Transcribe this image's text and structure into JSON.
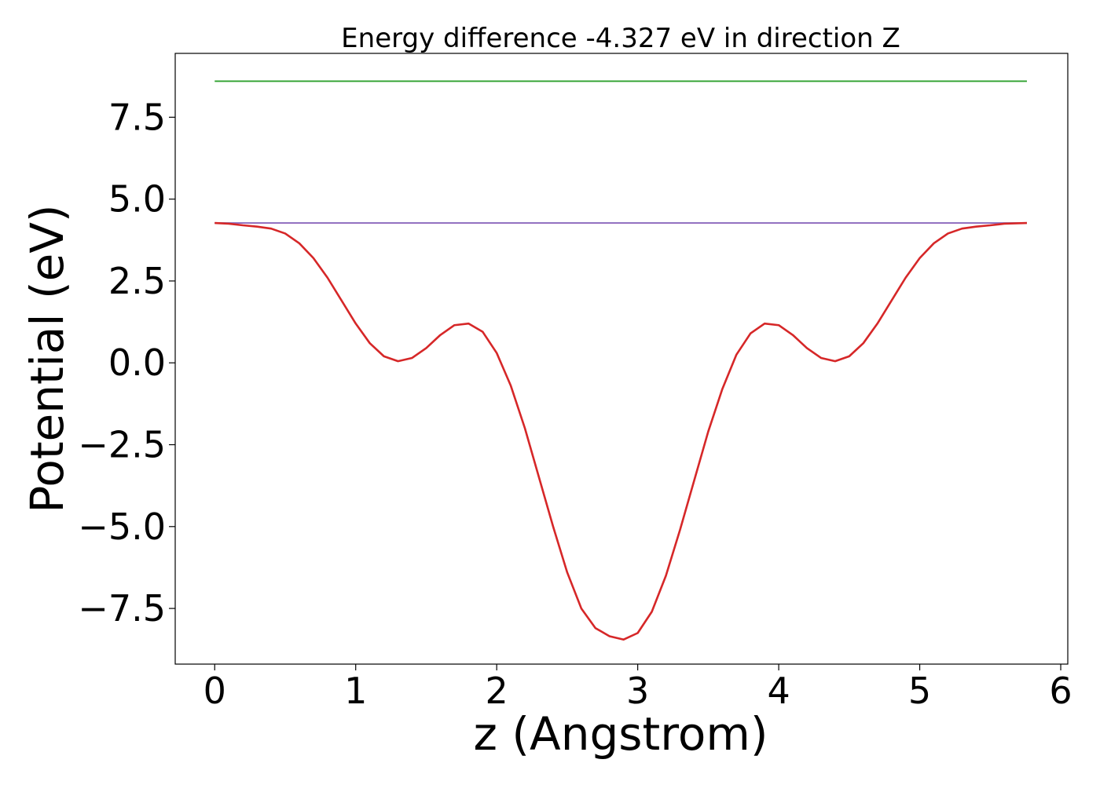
{
  "chart_data": {
    "type": "line",
    "title": "Energy difference -4.327 eV in direction Z",
    "xlabel": "z (Angstrom)",
    "ylabel": "Potential (eV)",
    "xlim": [
      -0.28,
      6.05
    ],
    "ylim": [
      -9.2,
      9.45
    ],
    "xticks": [
      0,
      1,
      2,
      3,
      4,
      5,
      6
    ],
    "xtick_labels": [
      "0",
      "1",
      "2",
      "3",
      "4",
      "5",
      "6"
    ],
    "yticks": [
      -7.5,
      -5.0,
      -2.5,
      0.0,
      2.5,
      5.0,
      7.5
    ],
    "ytick_labels": [
      "−7.5",
      "−5.0",
      "−2.5",
      "0.0",
      "2.5",
      "5.0",
      "7.5"
    ],
    "grid": false,
    "series": [
      {
        "color": "#2ca02c",
        "x": [
          0,
          5.76
        ],
        "y": [
          8.6,
          8.6
        ]
      },
      {
        "color": "#1f77b4",
        "x": [
          0,
          5.76
        ],
        "y": [
          4.27,
          4.27
        ]
      },
      {
        "color": "#9467bd",
        "x": [
          0,
          5.76
        ],
        "y": [
          4.27,
          4.27
        ]
      },
      {
        "color": "#d62728",
        "x": [
          0.0,
          0.1,
          0.2,
          0.3,
          0.4,
          0.5,
          0.6,
          0.7,
          0.8,
          0.9,
          1.0,
          1.1,
          1.2,
          1.3,
          1.4,
          1.5,
          1.6,
          1.7,
          1.8,
          1.9,
          2.0,
          2.1,
          2.2,
          2.3,
          2.4,
          2.5,
          2.6,
          2.7,
          2.8,
          2.9,
          3.0,
          3.1,
          3.2,
          3.3,
          3.4,
          3.5,
          3.6,
          3.7,
          3.8,
          3.9,
          4.0,
          4.1,
          4.2,
          4.3,
          4.4,
          4.5,
          4.6,
          4.7,
          4.8,
          4.9,
          5.0,
          5.1,
          5.2,
          5.3,
          5.4,
          5.5,
          5.6,
          5.76
        ],
        "y": [
          4.27,
          4.25,
          4.2,
          4.16,
          4.1,
          3.95,
          3.65,
          3.2,
          2.6,
          1.9,
          1.2,
          0.6,
          0.2,
          0.05,
          0.15,
          0.45,
          0.85,
          1.15,
          1.2,
          0.95,
          0.3,
          -0.7,
          -2.0,
          -3.5,
          -5.0,
          -6.4,
          -7.5,
          -8.1,
          -8.35,
          -8.45,
          -8.25,
          -7.6,
          -6.5,
          -5.1,
          -3.6,
          -2.1,
          -0.8,
          0.25,
          0.9,
          1.2,
          1.15,
          0.85,
          0.45,
          0.15,
          0.05,
          0.2,
          0.6,
          1.2,
          1.9,
          2.6,
          3.2,
          3.65,
          3.95,
          4.1,
          4.16,
          4.2,
          4.25,
          4.27
        ]
      }
    ]
  }
}
